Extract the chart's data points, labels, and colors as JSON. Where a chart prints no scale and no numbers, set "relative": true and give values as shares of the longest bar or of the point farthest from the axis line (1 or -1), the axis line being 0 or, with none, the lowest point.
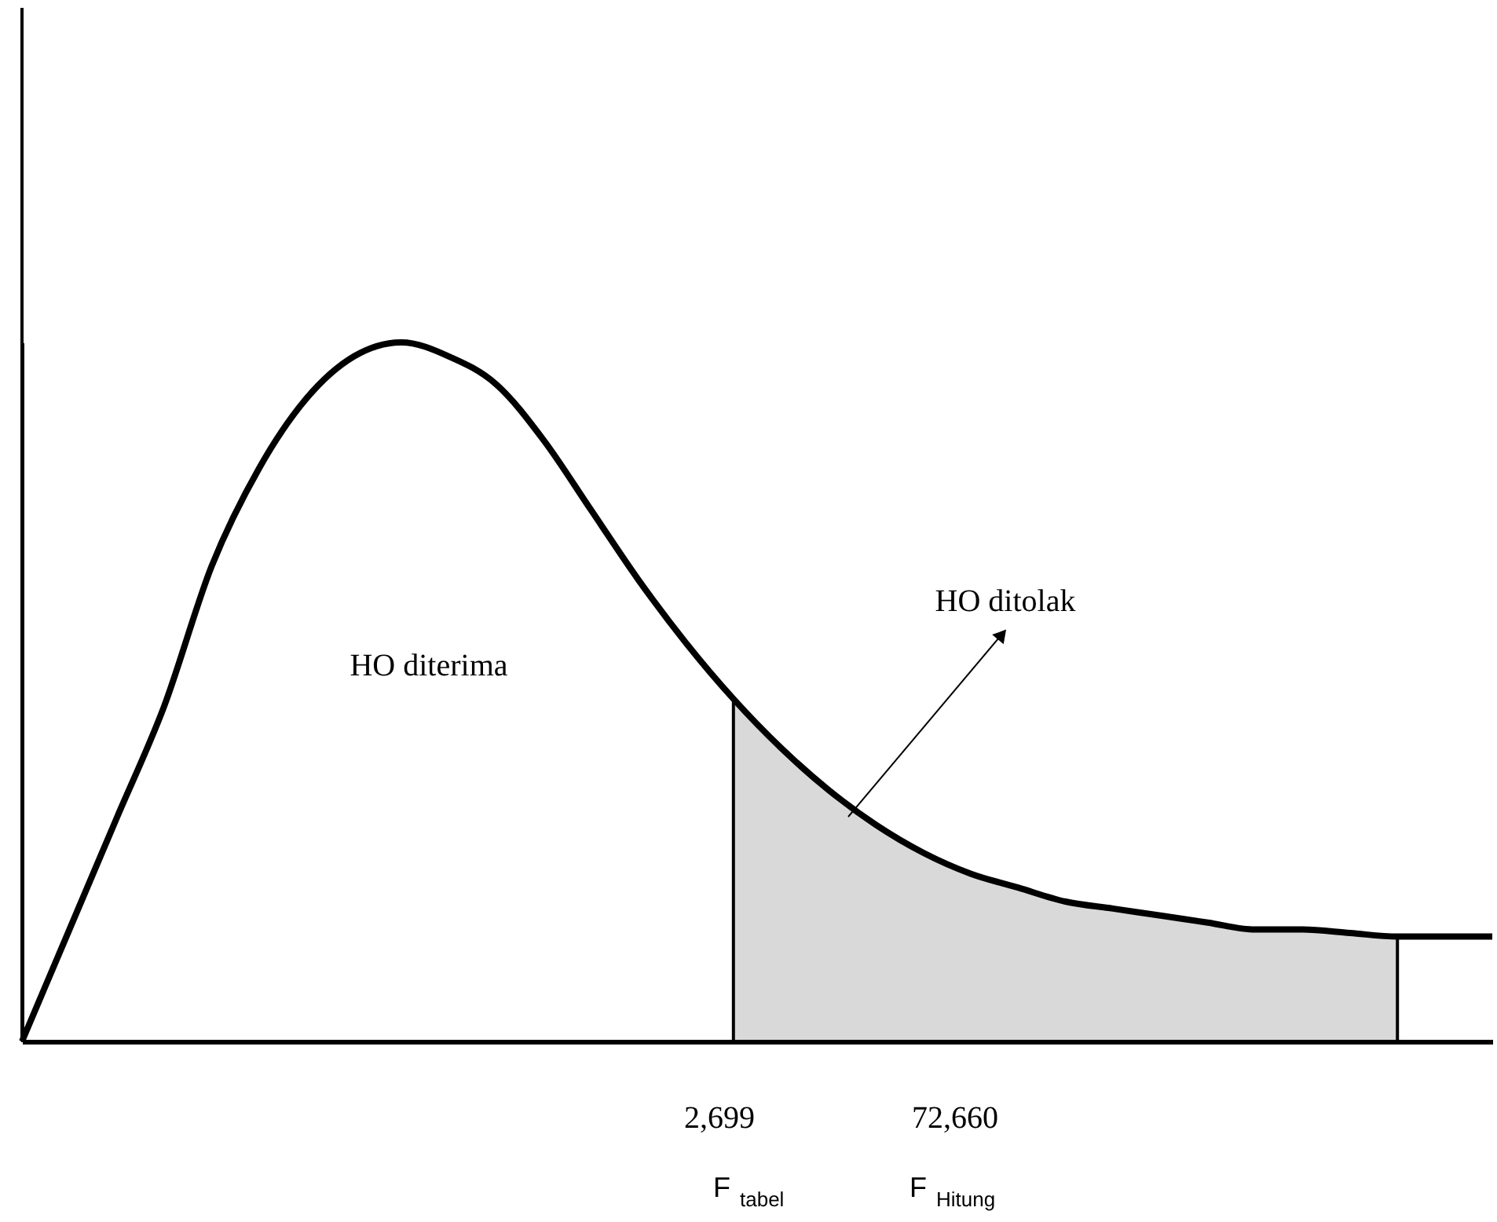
{
  "chart_data": {
    "type": "line",
    "relative": true,
    "categories": [
      null,
      null,
      null,
      null,
      null,
      null,
      null,
      null,
      null,
      null,
      null,
      null,
      null,
      null,
      null,
      null,
      null,
      null,
      null,
      null,
      null,
      null,
      null,
      null,
      null,
      null,
      null,
      null,
      null,
      null,
      null,
      null
    ],
    "series": [
      {
        "type": "area",
        "color": "#000000",
        "values": [
          null,
          null,
          null,
          null,
          null,
          null,
          null,
          null,
          null,
          null,
          null,
          null,
          null,
          null,
          null,
          0.49,
          0.42,
          0.36,
          0.31,
          0.27,
          0.24,
          0.22,
          0.2,
          0.19,
          0.18,
          0.17,
          0.16,
          0.16,
          0.155,
          0.15,
          null,
          null
        ]
      },
      {
        "color": "#000000",
        "values": [
          0,
          0.16,
          0.32,
          0.48,
          0.68,
          0.82,
          0.92,
          0.98,
          1,
          0.98,
          0.94,
          0.86,
          0.76,
          0.66,
          0.57,
          0.49,
          0.42,
          0.36,
          0.31,
          0.27,
          0.24,
          0.22,
          0.2,
          0.19,
          0.18,
          0.17,
          0.16,
          0.16,
          0.155,
          0.15,
          0.15,
          0.15
        ]
      }
    ],
    "annotations": [
      "HO diterima",
      "HO ditolak",
      "2,699",
      "72,660",
      "F$_{tabel}$",
      "F$_{Hitung}$"
    ],
    "grid": false,
    "tick_labels": false,
    "line_style": "solid",
    "marker": "none"
  }
}
